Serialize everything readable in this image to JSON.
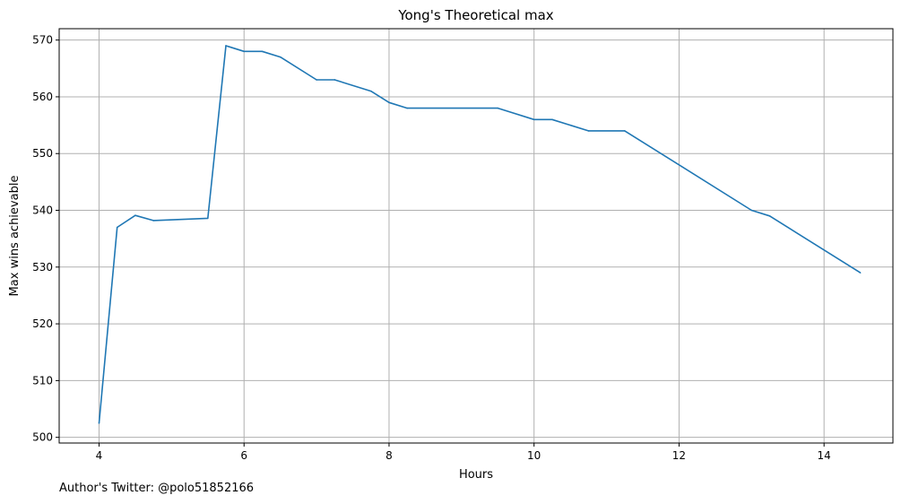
{
  "chart_data": {
    "type": "line",
    "title": "Yong's Theoretical max",
    "xlabel": "Hours",
    "ylabel": "Max wins achievable",
    "xlim": [
      3.45,
      14.95
    ],
    "ylim": [
      499,
      572
    ],
    "x_ticks": [
      4,
      6,
      8,
      10,
      12,
      14
    ],
    "y_ticks": [
      500,
      510,
      520,
      530,
      540,
      550,
      560,
      570
    ],
    "grid": true,
    "series": [
      {
        "color": "#1f77b4",
        "x": [
          4,
          4.25,
          4.5,
          4.75,
          5.5,
          5.75,
          6,
          6.25,
          6.5,
          7,
          7.25,
          7.75,
          8,
          8.25,
          9.5,
          10,
          10.25,
          10.75,
          11.25,
          13,
          13.25,
          14.5
        ],
        "y": [
          502.5,
          537,
          539.1,
          538.2,
          538.6,
          569,
          568,
          568,
          567,
          563,
          563,
          561,
          559,
          558,
          558,
          556,
          556,
          554,
          554,
          540,
          539,
          529
        ]
      }
    ]
  },
  "footer": {
    "text": "Author's Twitter: @polo51852166"
  }
}
